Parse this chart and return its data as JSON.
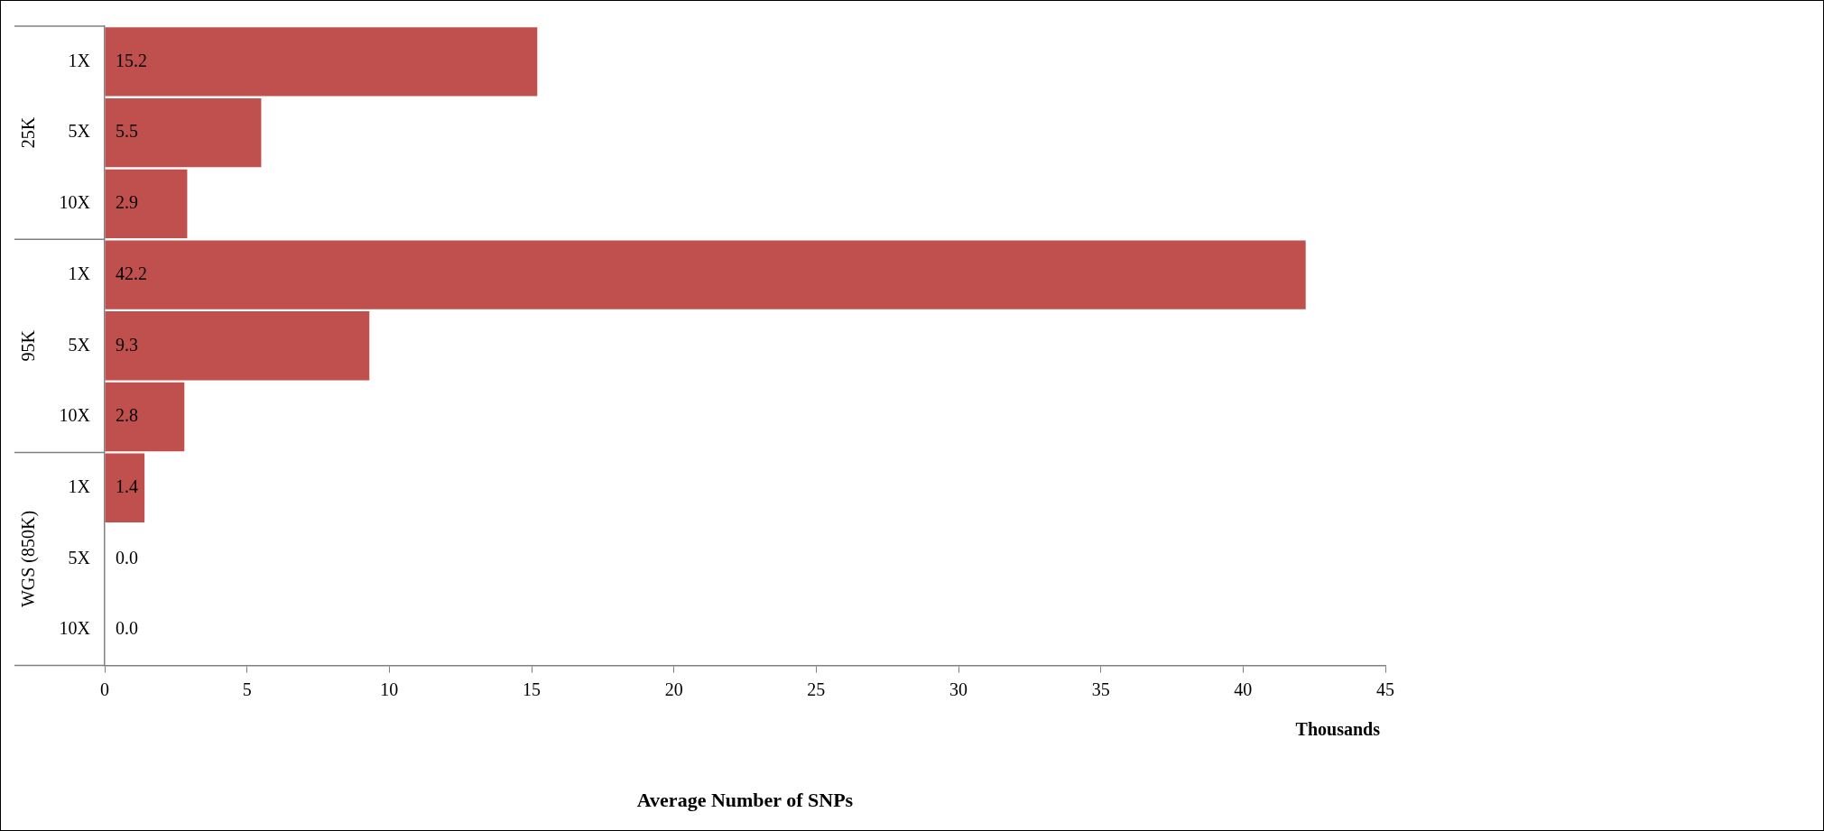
{
  "chart_data": {
    "type": "bar",
    "orientation": "horizontal",
    "xlabel": "Average Number of SNPs",
    "categories": [
      "1X",
      "5X",
      "10X",
      "1X",
      "5X",
      "10X",
      "1X",
      "5X",
      "10X"
    ],
    "values": [
      15.2,
      5.5,
      2.9,
      42.2,
      9.3,
      2.8,
      1.4,
      0.0,
      0.0
    ],
    "value_labels": [
      "15.2",
      "5.5",
      "2.9",
      "42.2",
      "9.3",
      "2.8",
      "1.4",
      "0.0",
      "0.0"
    ],
    "color": "#c0504d",
    "xlim": [
      0,
      45
    ],
    "xticks": [
      0,
      5,
      10,
      15,
      20,
      25,
      30,
      35,
      40,
      45
    ],
    "grid": false,
    "legend": false,
    "annotations": [
      "25K",
      "95K",
      "WGS (850K)",
      "Thousands"
    ]
  }
}
